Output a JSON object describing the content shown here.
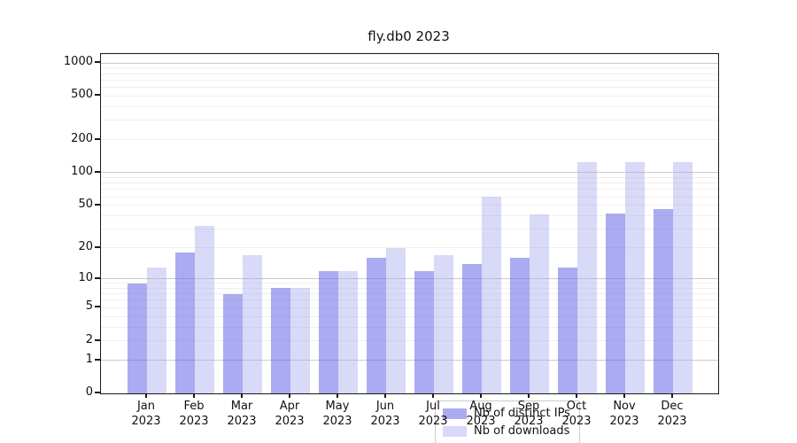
{
  "chart_data": {
    "type": "bar",
    "title": "fly.db0 2023",
    "x_tick_months": [
      "Jan",
      "Feb",
      "Mar",
      "Apr",
      "May",
      "Jun",
      "Jul",
      "Aug",
      "Sep",
      "Oct",
      "Nov",
      "Dec"
    ],
    "x_tick_year": "2023",
    "series": [
      {
        "name": "Nb of distinct IPs",
        "color": "rgba(102,102,230,0.55)",
        "values": [
          9,
          18,
          7,
          8,
          12,
          16,
          12,
          14,
          16,
          13,
          42,
          46
        ]
      },
      {
        "name": "Nb of downloads",
        "color": "rgba(175,175,240,0.47)",
        "values": [
          13,
          32,
          17,
          8,
          12,
          20,
          17,
          60,
          41,
          125,
          125,
          125
        ]
      }
    ],
    "y_scale": "log10(value+1)",
    "y_axis_range": [
      0,
      1000
    ],
    "y_tick_labels": [
      0,
      1,
      2,
      5,
      10,
      20,
      50,
      100,
      200,
      500,
      1000
    ],
    "y_major_gridlines": [
      1,
      10,
      100,
      1000
    ],
    "y_minor_gridlines": [
      2,
      3,
      4,
      5,
      6,
      7,
      8,
      9,
      20,
      30,
      40,
      50,
      60,
      70,
      80,
      90,
      200,
      300,
      400,
      500,
      600,
      700,
      800,
      900
    ],
    "legend_position": "lower center",
    "grid": "on",
    "colors": {
      "major_grid": "#c9c9c9",
      "minor_grid": "#efefef",
      "axis": "#1a1a1a",
      "text": "#111111",
      "background": "#ffffff"
    }
  }
}
